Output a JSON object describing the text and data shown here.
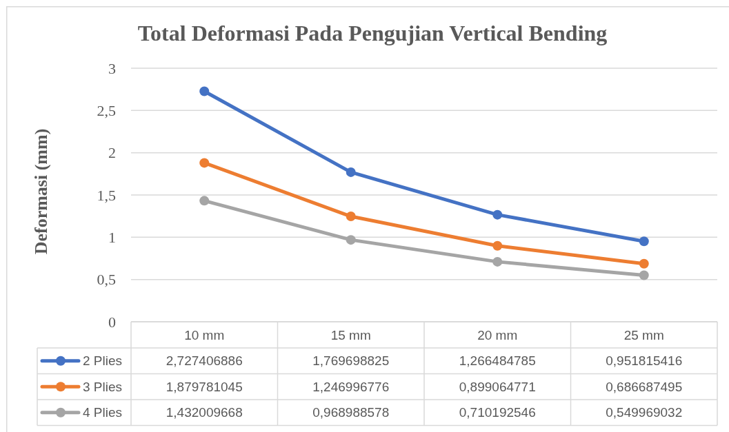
{
  "chart_data": {
    "type": "line",
    "title": "Total Deformasi Pada Pengujian Vertical Bending",
    "ylabel": "Deformasi (mm)",
    "categories": [
      "10 mm",
      "15 mm",
      "20 mm",
      "25 mm"
    ],
    "series": [
      {
        "name": "2 Plies",
        "color": "#4472c4",
        "values": [
          2.727406886,
          1.769698825,
          1.266484785,
          0.951815416
        ],
        "value_labels": [
          "2,727406886",
          "1,769698825",
          "1,266484785",
          "0,951815416"
        ]
      },
      {
        "name": "3 Plies",
        "color": "#ed7d31",
        "values": [
          1.879781045,
          1.246996776,
          0.899064771,
          0.686687495
        ],
        "value_labels": [
          "1,879781045",
          "1,246996776",
          "0,899064771",
          "0,686687495"
        ]
      },
      {
        "name": "4 Plies",
        "color": "#a5a5a5",
        "values": [
          1.432009668,
          0.968988578,
          0.710192546,
          0.549969032
        ],
        "value_labels": [
          "1,432009668",
          "0,968988578",
          "0,710192546",
          "0,549969032"
        ]
      }
    ],
    "ylim": [
      0,
      3
    ],
    "yticks": [
      0,
      {
        "value": 0.5,
        "label": "0,5"
      },
      1,
      {
        "value": 1.5,
        "label": "1,5"
      },
      2,
      {
        "value": 2.5,
        "label": "2,5"
      },
      3
    ],
    "grid": "y",
    "legend": "bottom",
    "marker": "circle",
    "line_style": "solid"
  }
}
